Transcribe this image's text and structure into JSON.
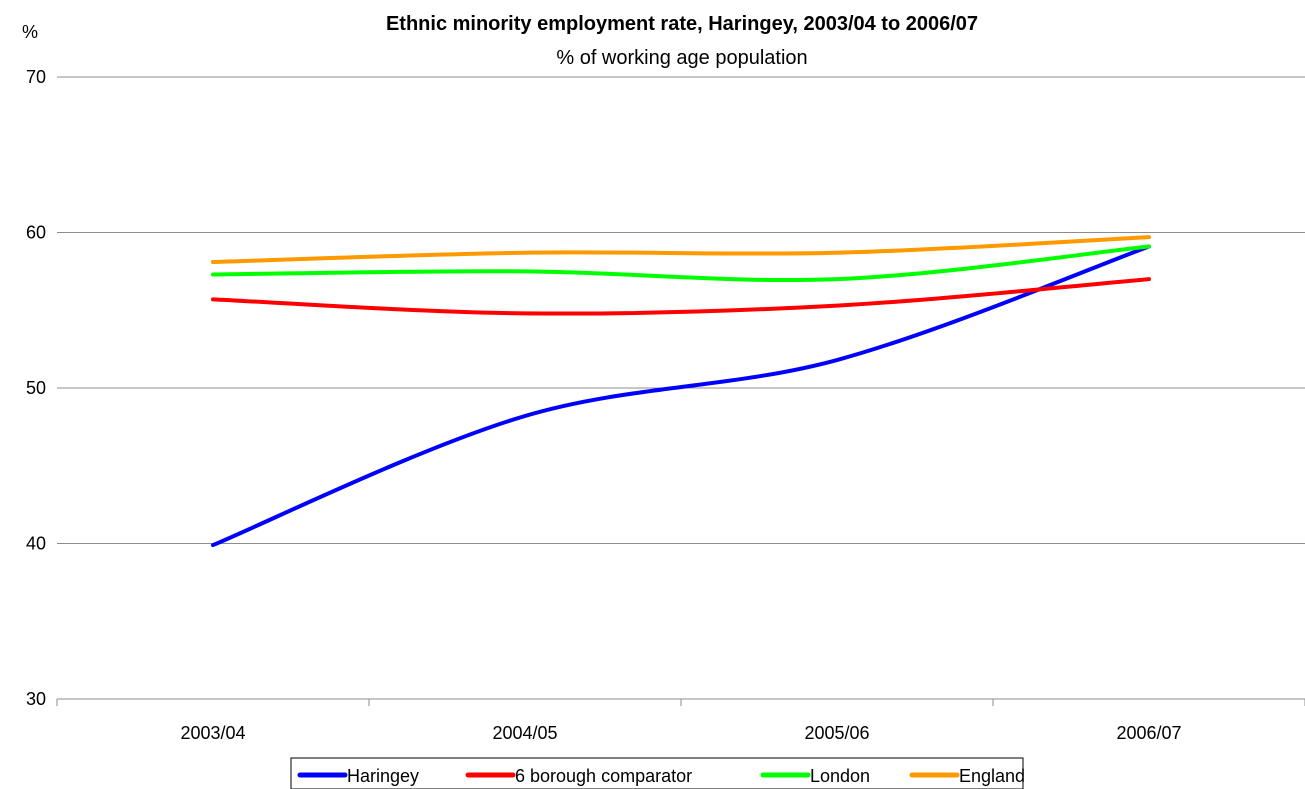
{
  "chart_data": {
    "type": "line",
    "title": "Ethnic minority employment rate, Haringey, 2003/04 to 2006/07",
    "subtitle": "% of working age population",
    "ylabel": "%",
    "xlabel": "",
    "categories": [
      "2003/04",
      "2004/05",
      "2005/06",
      "2006/07"
    ],
    "ylim": [
      30,
      70
    ],
    "yticks": [
      "30",
      "40",
      "50",
      "60",
      "70"
    ],
    "grid": true,
    "legend_position": "bottom",
    "smooth": true,
    "series": [
      {
        "name": "Haringey",
        "color": "#0000ff",
        "values": [
          39.9,
          48.2,
          51.8,
          59.1
        ]
      },
      {
        "name": "6 borough comparator",
        "color": "#ff0000",
        "values": [
          55.7,
          54.8,
          55.3,
          57.0
        ]
      },
      {
        "name": "London",
        "color": "#00ff00",
        "values": [
          57.3,
          57.5,
          57.0,
          59.1
        ]
      },
      {
        "name": "England",
        "color": "#ff9900",
        "values": [
          58.1,
          58.7,
          58.7,
          59.7
        ]
      }
    ]
  }
}
